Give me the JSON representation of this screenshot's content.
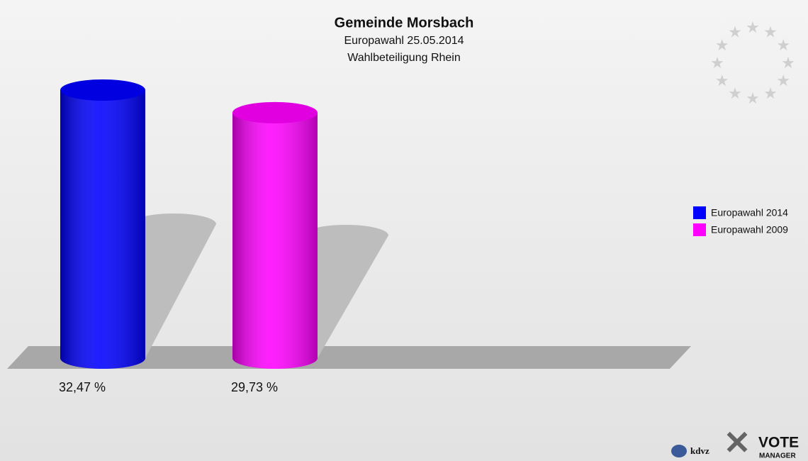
{
  "chart_data": {
    "type": "bar",
    "title": "Gemeinde Morsbach",
    "subtitle": [
      "Europawahl 25.05.2014",
      "Wahlbeteiligung Rhein"
    ],
    "categories": [
      null
    ],
    "series": [
      {
        "name": "Europawahl 2014",
        "color": "#0000ff",
        "values": [
          32.47
        ],
        "value_labels": [
          "32,47 %"
        ]
      },
      {
        "name": "Europawahl 2009",
        "color": "#ff00ff",
        "values": [
          29.73
        ],
        "value_labels": [
          "29,73 %"
        ]
      }
    ],
    "legend": "right"
  },
  "footer": {
    "logos": [
      "kdvz",
      "VOTE",
      "MANAGER"
    ]
  }
}
